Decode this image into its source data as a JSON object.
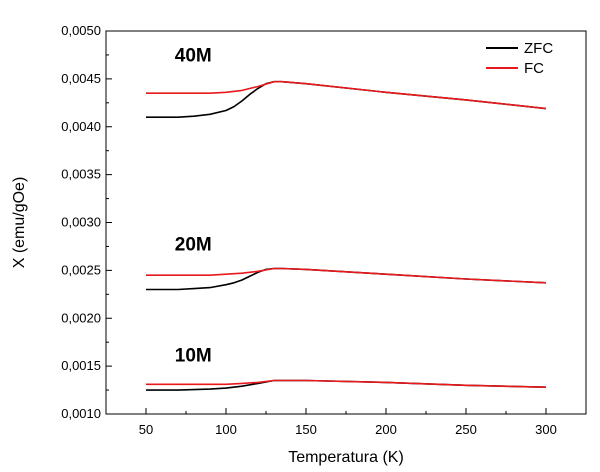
{
  "chart_data": {
    "type": "line",
    "xlabel": "Temperatura (K)",
    "ylabel": "X (emu/gOe)",
    "xlim": [
      25,
      325
    ],
    "ylim": [
      0.001,
      0.005
    ],
    "x_ticks": [
      50,
      100,
      150,
      200,
      250,
      300
    ],
    "y_ticks": [
      "0,0010",
      "0,0015",
      "0,0020",
      "0,0025",
      "0,0030",
      "0,0035",
      "0,0040",
      "0,0045",
      "0,0050"
    ],
    "y_tick_values": [
      0.001,
      0.0015,
      0.002,
      0.0025,
      0.003,
      0.0035,
      0.004,
      0.0045,
      0.005
    ],
    "legend": {
      "placement": "top-right",
      "entries": [
        "ZFC",
        "FC"
      ]
    },
    "colors": {
      "ZFC": "#000000",
      "FC": "#e8191c"
    },
    "annotations": [
      {
        "text": "40M",
        "x": 68,
        "y": 0.00468
      },
      {
        "text": "20M",
        "x": 68,
        "y": 0.00271
      },
      {
        "text": "10M",
        "x": 68,
        "y": 0.00155
      }
    ],
    "series": [
      {
        "name": "ZFC",
        "group": "40M",
        "x": [
          50,
          60,
          70,
          80,
          90,
          100,
          105,
          110,
          115,
          120,
          125,
          130,
          135,
          150,
          200,
          250,
          300
        ],
        "values": [
          0.0041,
          0.0041,
          0.0041,
          0.00411,
          0.00413,
          0.00417,
          0.00421,
          0.00427,
          0.00434,
          0.0044,
          0.00445,
          0.00447,
          0.00447,
          0.00445,
          0.00436,
          0.00428,
          0.00419
        ]
      },
      {
        "name": "FC",
        "group": "40M",
        "x": [
          50,
          70,
          90,
          100,
          110,
          120,
          130,
          135,
          150,
          200,
          250,
          300
        ],
        "values": [
          0.00435,
          0.00435,
          0.00435,
          0.00436,
          0.00438,
          0.00442,
          0.00447,
          0.00447,
          0.00445,
          0.00436,
          0.00428,
          0.00419
        ]
      },
      {
        "name": "ZFC",
        "group": "20M",
        "x": [
          50,
          60,
          70,
          80,
          90,
          100,
          105,
          110,
          115,
          120,
          125,
          130,
          135,
          150,
          200,
          250,
          300
        ],
        "values": [
          0.0023,
          0.0023,
          0.0023,
          0.00231,
          0.00232,
          0.00235,
          0.00237,
          0.0024,
          0.00244,
          0.00248,
          0.00251,
          0.00252,
          0.00252,
          0.00251,
          0.00246,
          0.00241,
          0.00237
        ]
      },
      {
        "name": "FC",
        "group": "20M",
        "x": [
          50,
          70,
          90,
          100,
          110,
          120,
          130,
          135,
          150,
          200,
          250,
          300
        ],
        "values": [
          0.00245,
          0.00245,
          0.00245,
          0.00246,
          0.00247,
          0.00249,
          0.00252,
          0.00252,
          0.00251,
          0.00246,
          0.00241,
          0.00237
        ]
      },
      {
        "name": "ZFC",
        "group": "10M",
        "x": [
          50,
          70,
          90,
          100,
          110,
          120,
          130,
          135,
          150,
          200,
          250,
          300
        ],
        "values": [
          0.00125,
          0.00125,
          0.00126,
          0.00127,
          0.00129,
          0.00132,
          0.00135,
          0.00135,
          0.00135,
          0.00133,
          0.0013,
          0.00128
        ]
      },
      {
        "name": "FC",
        "group": "10M",
        "x": [
          50,
          70,
          90,
          100,
          110,
          120,
          130,
          135,
          150,
          200,
          250,
          300
        ],
        "values": [
          0.00131,
          0.00131,
          0.00131,
          0.00131,
          0.00132,
          0.00133,
          0.00135,
          0.00135,
          0.00135,
          0.00133,
          0.0013,
          0.00128
        ]
      }
    ]
  }
}
